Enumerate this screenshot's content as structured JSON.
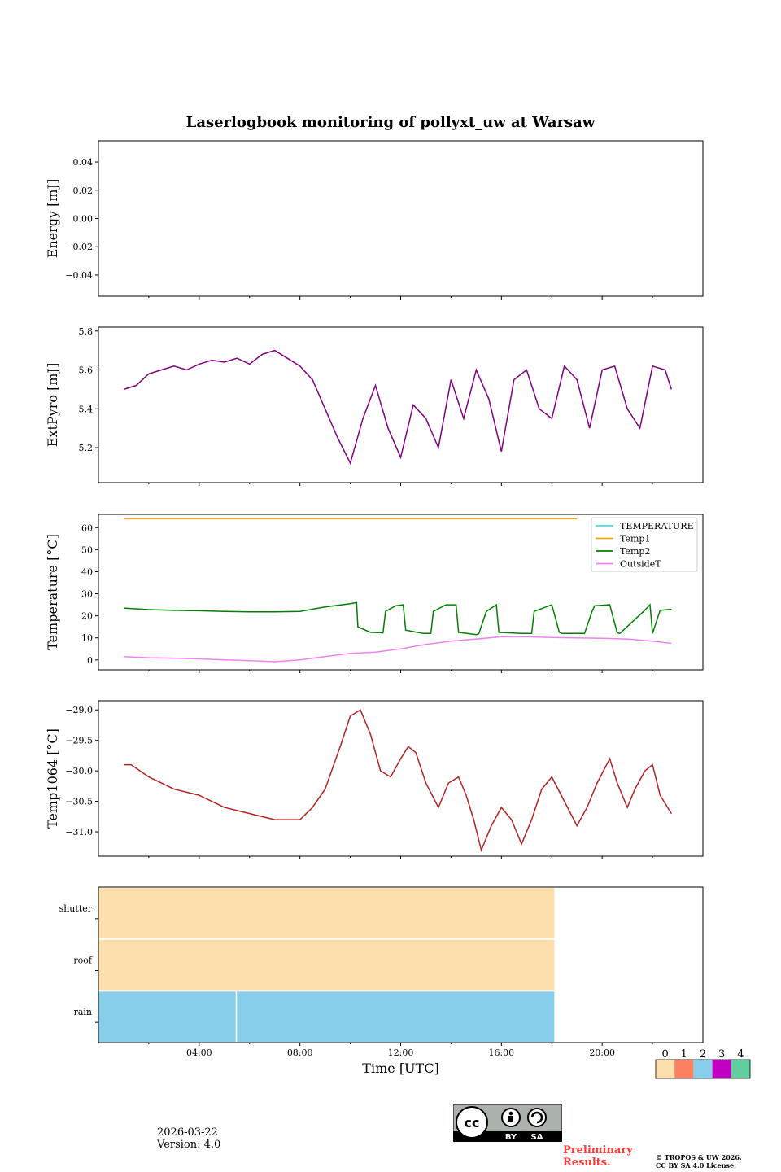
{
  "figure": {
    "title": "Laserlogbook monitoring of pollyxt_uw at Warsaw",
    "xlabel": "Time [UTC]",
    "x_ticks": [
      "04:00",
      "08:00",
      "12:00",
      "16:00",
      "20:00"
    ],
    "x_tick_hours": [
      4,
      8,
      12,
      16,
      20
    ],
    "x_range_hours": [
      0,
      24
    ]
  },
  "chart_data": [
    {
      "type": "line",
      "ylabel": "Energy [mJ]",
      "ylim": [
        -0.055,
        0.055
      ],
      "yticks": [
        0.04,
        0.02,
        0.0,
        -0.02,
        -0.04
      ],
      "ytick_labels": [
        "0.04",
        "0.02",
        "0.00",
        "−0.02",
        "−0.04"
      ],
      "series": []
    },
    {
      "type": "line",
      "ylabel": "ExtPyro [mJ]",
      "ylim": [
        5.02,
        5.82
      ],
      "yticks": [
        5.8,
        5.6,
        5.4,
        5.2
      ],
      "ytick_labels": [
        "5.8",
        "5.6",
        "5.4",
        "5.2"
      ],
      "series": [
        {
          "name": "ExtPyro",
          "color": "#800080",
          "x": [
            1.0,
            1.5,
            2.0,
            2.5,
            3.0,
            3.5,
            4.0,
            4.5,
            5.0,
            5.5,
            6.0,
            6.5,
            7.0,
            7.5,
            8.0,
            8.5,
            9.0,
            9.5,
            10.0,
            10.5,
            11.0,
            11.5,
            12.0,
            12.5,
            13.0,
            13.5,
            14.0,
            14.5,
            15.0,
            15.5,
            16.0,
            16.5,
            17.0,
            17.5,
            18.0,
            18.5,
            19.0,
            19.5,
            20.0,
            20.5,
            21.0,
            21.5,
            22.0,
            22.5,
            22.75
          ],
          "y": [
            5.5,
            5.52,
            5.58,
            5.6,
            5.62,
            5.6,
            5.63,
            5.65,
            5.64,
            5.66,
            5.63,
            5.68,
            5.7,
            5.66,
            5.62,
            5.55,
            5.4,
            5.25,
            5.12,
            5.35,
            5.52,
            5.3,
            5.15,
            5.42,
            5.35,
            5.2,
            5.55,
            5.35,
            5.6,
            5.45,
            5.18,
            5.55,
            5.6,
            5.4,
            5.35,
            5.62,
            5.55,
            5.3,
            5.6,
            5.62,
            5.4,
            5.3,
            5.62,
            5.6,
            5.5
          ]
        }
      ]
    },
    {
      "type": "line",
      "ylabel": "Temperature [°C]",
      "ylim": [
        -4.5,
        66
      ],
      "yticks": [
        60,
        50,
        40,
        30,
        20,
        10,
        0
      ],
      "ytick_labels": [
        "60",
        "50",
        "40",
        "30",
        "20",
        "10",
        "0"
      ],
      "legend": [
        "TEMPERATURE",
        "Temp1",
        "Temp2",
        "OutsideT"
      ],
      "series": [
        {
          "name": "TEMPERATURE",
          "color": "#40e0f0",
          "x": [],
          "y": []
        },
        {
          "name": "Temp1",
          "color": "#ffa500",
          "x": [
            1.0,
            19.0
          ],
          "y": [
            64.0,
            64.0
          ]
        },
        {
          "name": "Temp2",
          "color": "#008000",
          "x": [
            1.0,
            2.0,
            3.0,
            4.0,
            5.0,
            6.0,
            7.0,
            8.0,
            9.0,
            10.0,
            10.25,
            10.3,
            10.8,
            11.3,
            11.4,
            11.8,
            12.1,
            12.2,
            12.9,
            13.2,
            13.3,
            13.8,
            14.2,
            14.3,
            15.0,
            15.1,
            15.4,
            15.8,
            15.9,
            16.8,
            17.2,
            17.3,
            18.0,
            18.3,
            18.4,
            19.3,
            19.6,
            19.7,
            20.3,
            20.6,
            20.7,
            21.6,
            21.9,
            22.0,
            22.3,
            22.75
          ],
          "y": [
            23.5,
            22.8,
            22.5,
            22.3,
            22.0,
            21.8,
            21.8,
            22.0,
            24.0,
            25.5,
            26.0,
            15.0,
            12.5,
            12.3,
            22.0,
            24.5,
            25.0,
            13.5,
            12.0,
            12.0,
            22.0,
            25.0,
            25.0,
            12.5,
            11.5,
            11.8,
            22.0,
            25.0,
            12.5,
            12.0,
            12.0,
            22.0,
            25.0,
            12.5,
            12.0,
            12.0,
            22.0,
            24.5,
            25.0,
            12.3,
            12.0,
            21.5,
            25.0,
            12.0,
            22.5,
            23.0
          ]
        },
        {
          "name": "OutsideT",
          "color": "#ee82ee",
          "x": [
            1.0,
            2.0,
            3.0,
            4.0,
            5.0,
            6.0,
            7.0,
            8.0,
            9.0,
            10.0,
            11.0,
            12.0,
            13.0,
            14.0,
            15.0,
            16.0,
            17.0,
            18.0,
            19.0,
            20.0,
            21.0,
            22.0,
            22.75
          ],
          "y": [
            1.5,
            1.0,
            0.8,
            0.5,
            0.0,
            -0.3,
            -0.8,
            0.0,
            1.5,
            3.0,
            3.5,
            5.0,
            7.0,
            8.5,
            9.5,
            10.5,
            10.5,
            10.2,
            10.0,
            9.8,
            9.5,
            8.5,
            7.5
          ]
        }
      ]
    },
    {
      "type": "line",
      "ylabel": "Temp1064 [°C]",
      "ylim": [
        -31.4,
        -28.85
      ],
      "yticks": [
        -29.0,
        -29.5,
        -30.0,
        -30.5,
        -31.0
      ],
      "ytick_labels": [
        "−29.0",
        "−29.5",
        "−30.0",
        "−30.5",
        "−31.0"
      ],
      "series": [
        {
          "name": "Temp1064",
          "color": "#b22222",
          "x": [
            1.0,
            1.3,
            2.0,
            3.0,
            4.0,
            5.0,
            6.0,
            7.0,
            8.0,
            8.5,
            9.0,
            9.6,
            10.0,
            10.4,
            10.8,
            11.2,
            11.6,
            12.0,
            12.3,
            12.6,
            13.0,
            13.5,
            13.9,
            14.3,
            14.6,
            14.9,
            15.2,
            15.6,
            16.0,
            16.4,
            16.8,
            17.2,
            17.6,
            18.0,
            18.5,
            19.0,
            19.4,
            19.8,
            20.3,
            20.6,
            21.0,
            21.3,
            21.7,
            22.0,
            22.3,
            22.75
          ],
          "y": [
            -29.9,
            -29.9,
            -30.1,
            -30.3,
            -30.4,
            -30.6,
            -30.7,
            -30.8,
            -30.8,
            -30.6,
            -30.3,
            -29.6,
            -29.1,
            -29.0,
            -29.4,
            -30.0,
            -30.1,
            -29.8,
            -29.6,
            -29.7,
            -30.2,
            -30.6,
            -30.2,
            -30.1,
            -30.4,
            -30.8,
            -31.3,
            -30.9,
            -30.6,
            -30.8,
            -31.2,
            -30.8,
            -30.3,
            -30.1,
            -30.5,
            -30.9,
            -30.6,
            -30.2,
            -29.8,
            -30.2,
            -30.6,
            -30.3,
            -30.0,
            -29.9,
            -30.4,
            -30.7
          ]
        }
      ]
    },
    {
      "type": "heatmap",
      "rows": [
        "shutter",
        "roof",
        "rain"
      ],
      "row_segments": [
        [
          {
            "from": 0.0,
            "to": 18.1,
            "value": 0
          }
        ],
        [
          {
            "from": 0.0,
            "to": 18.1,
            "value": 0
          }
        ],
        [
          {
            "from": 0.0,
            "to": 5.45,
            "value": 2
          },
          {
            "from": 5.5,
            "to": 18.1,
            "value": 2
          }
        ]
      ],
      "colorbar": {
        "labels": [
          "0",
          "1",
          "2",
          "3",
          "4"
        ],
        "colors": [
          "#fddfad",
          "#fb8161",
          "#87ceeb",
          "#c100c1",
          "#5fcfa0"
        ]
      }
    }
  ],
  "footer": {
    "date": "2026-03-22",
    "version": "Version: 4.0",
    "preliminary_line1": "Preliminary",
    "preliminary_line2": "Results.",
    "copyright_line1": "© TROPOS & UW 2026.",
    "copyright_line2": "CC BY SA 4.0 License.",
    "license_badge": {
      "by": "BY",
      "sa": "SA"
    }
  }
}
